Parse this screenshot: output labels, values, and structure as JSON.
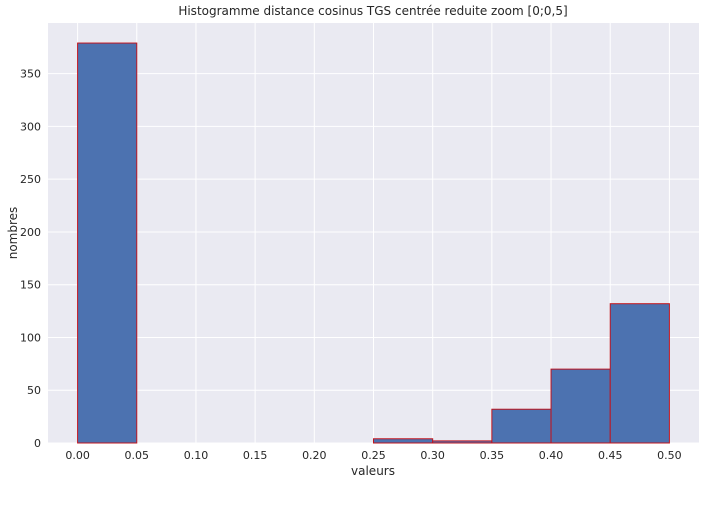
{
  "chart_data": {
    "type": "bar",
    "title": "Histogramme distance cosinus TGS centrée reduite zoom [0;0,5]",
    "xlabel": "valeurs",
    "ylabel": "nombres",
    "bins": [
      {
        "start": 0.0,
        "end": 0.05,
        "count": 379
      },
      {
        "start": 0.05,
        "end": 0.1,
        "count": 0
      },
      {
        "start": 0.1,
        "end": 0.15,
        "count": 0
      },
      {
        "start": 0.15,
        "end": 0.2,
        "count": 0
      },
      {
        "start": 0.2,
        "end": 0.25,
        "count": 0
      },
      {
        "start": 0.25,
        "end": 0.3,
        "count": 4
      },
      {
        "start": 0.3,
        "end": 0.35,
        "count": 2
      },
      {
        "start": 0.35,
        "end": 0.4,
        "count": 32
      },
      {
        "start": 0.4,
        "end": 0.45,
        "count": 70
      },
      {
        "start": 0.45,
        "end": 0.5,
        "count": 132
      }
    ],
    "x_ticks": [
      "0.00",
      "0.05",
      "0.10",
      "0.15",
      "0.20",
      "0.25",
      "0.30",
      "0.35",
      "0.40",
      "0.45",
      "0.50"
    ],
    "y_ticks": [
      "0",
      "50",
      "100",
      "150",
      "200",
      "250",
      "300",
      "350"
    ],
    "xlim": [
      -0.025,
      0.525
    ],
    "ylim": [
      0,
      398
    ],
    "grid": true,
    "colors": {
      "background": "#EAEAF2",
      "grid": "#FFFFFF",
      "bar_fill": "#4C72B0",
      "bar_edge": "#C0141E"
    }
  }
}
